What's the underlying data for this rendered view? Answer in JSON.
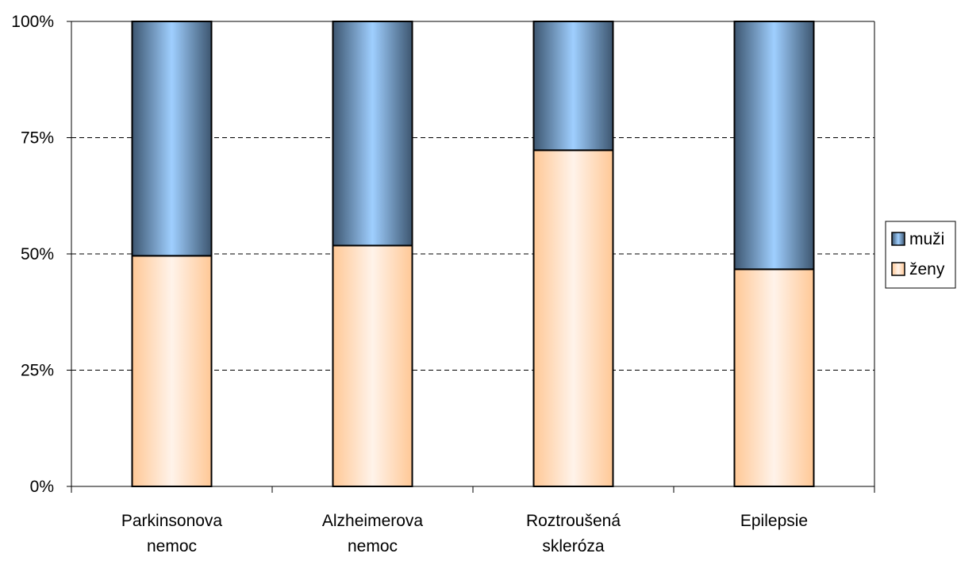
{
  "chart_data": {
    "type": "bar",
    "stacked": true,
    "percent_stacked": true,
    "categories": [
      [
        "Parkinsonova",
        "nemoc"
      ],
      [
        "Alzheimerova",
        "nemoc"
      ],
      [
        "Roztroušená",
        "skleróza"
      ],
      [
        "Epilepsie"
      ]
    ],
    "series": [
      {
        "name": "ženy",
        "values": [
          49.6,
          51.8,
          72.3,
          46.7
        ],
        "color_light": "#fff3ea",
        "color_dark": "#ffc896"
      },
      {
        "name": "muži",
        "values": [
          50.4,
          48.2,
          27.7,
          53.3
        ],
        "color_light": "#9fcfff",
        "color_dark": "#3d5670"
      }
    ],
    "y_ticks": [
      "0%",
      "25%",
      "50%",
      "75%",
      "100%"
    ],
    "ylim": [
      0,
      100
    ],
    "grid": "dashed horizontal",
    "legend": {
      "position": "right",
      "items": [
        "muži",
        "ženy"
      ]
    },
    "title": "",
    "xlabel": "",
    "ylabel": ""
  }
}
